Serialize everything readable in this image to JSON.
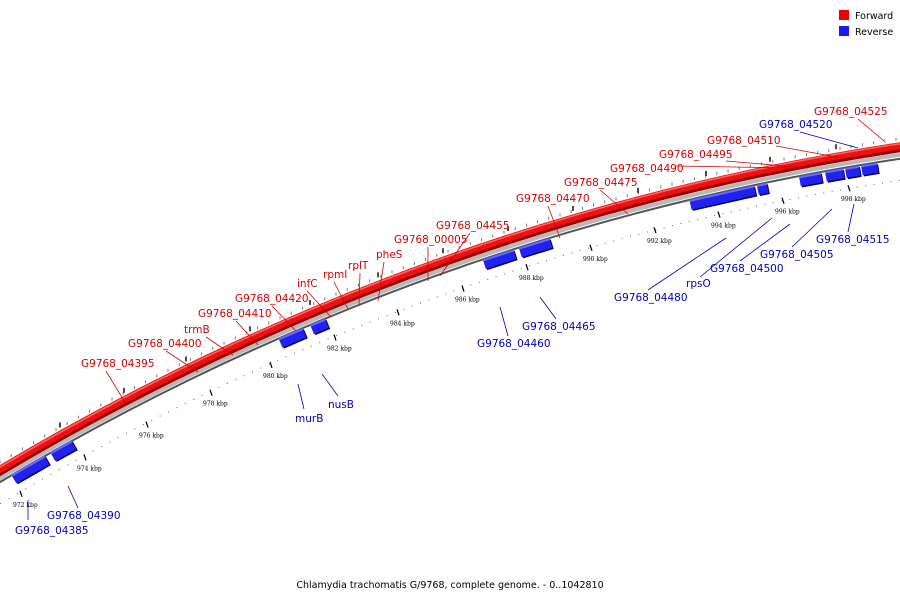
{
  "caption": "Chlamydia trachomatis G/9768, complete genome. - 0..1042810",
  "legend": [
    {
      "label": "Forward",
      "color": "#ee0000"
    },
    {
      "label": "Reverse",
      "color": "#1a1aee"
    }
  ],
  "colors": {
    "forward": "#ee1111",
    "reverse": "#2222ee",
    "backbone": "#aaaaaa"
  },
  "ticks": [
    "972 kbp",
    "974 kbp",
    "976 kbp",
    "978 kbp",
    "980 kbp",
    "982 kbp",
    "984 kbp",
    "986 kbp",
    "988 kbp",
    "990 kbp",
    "992 kbp",
    "994 kbp",
    "996 kbp",
    "998 kbp"
  ],
  "forward_genes": [
    "G9768_04395",
    "G9768_04400",
    "trmB",
    "G9768_04410",
    "G9768_04420",
    "infC",
    "rpmI",
    "rplT",
    "pheS",
    "G9768_00005",
    "G9768_04455",
    "G9768_04470",
    "G9768_04475",
    "G9768_04490",
    "G9768_04495",
    "G9768_04510",
    "G9768_04525"
  ],
  "reverse_genes": [
    "G9768_04385",
    "G9768_04390",
    "murB",
    "nusB",
    "G9768_04460",
    "G9768_04465",
    "G9768_04480",
    "rpsO",
    "G9768_04500",
    "G9768_04505",
    "G9768_04515",
    "G9768_04520"
  ]
}
